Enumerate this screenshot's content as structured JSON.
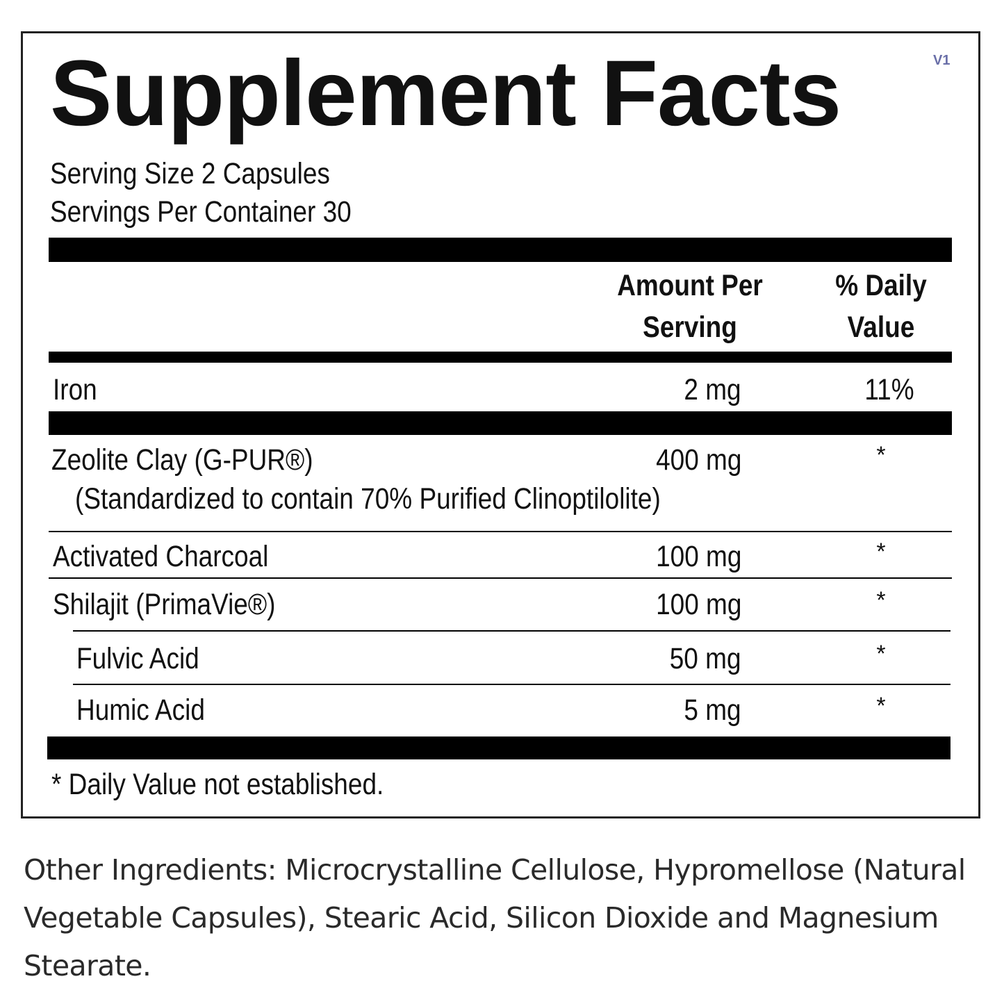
{
  "label": {
    "title": "Supplement Facts",
    "version": "V1",
    "serving_size": "Serving Size 2 Capsules",
    "servings_per_container": "Servings Per Container 30",
    "header": {
      "amount_line1": "Amount Per",
      "amount_line2": "Serving",
      "dv_line1": "% Daily",
      "dv_line2": "Value"
    },
    "rows": [
      {
        "name": "Iron",
        "amount": "2 mg",
        "dv": "11%"
      },
      {
        "name": "Zeolite Clay (G-PUR®)",
        "sub": "(Standardized to contain 70% Purified Clinoptilolite)",
        "amount": "400 mg",
        "dv": "*"
      },
      {
        "name": "Activated Charcoal",
        "amount": "100 mg",
        "dv": "*"
      },
      {
        "name": "Shilajit (PrimaVie®)",
        "amount": "100 mg",
        "dv": "*"
      },
      {
        "name": "Fulvic Acid",
        "amount": "50 mg",
        "dv": "*"
      },
      {
        "name": "Humic Acid",
        "amount": "5 mg",
        "dv": "*"
      }
    ],
    "footnote": "* Daily Value not established."
  },
  "other_ingredients": "Other Ingredients: Microcrystalline Cellulose, Hypromellose (Natural Vegetable Capsules), Stearic Acid, Silicon Dioxide and Magnesium Stearate."
}
